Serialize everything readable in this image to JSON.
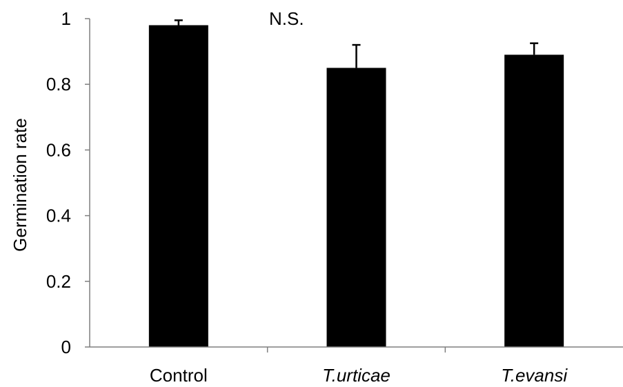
{
  "chart_data": {
    "type": "bar",
    "categories": [
      "Control",
      "T.urticae",
      "T.evansi"
    ],
    "category_italic": [
      false,
      true,
      true
    ],
    "values": [
      0.98,
      0.85,
      0.89
    ],
    "error_plus": [
      0.015,
      0.07,
      0.035
    ],
    "title": "",
    "xlabel": "",
    "ylabel": "Germination rate",
    "ylim": [
      0,
      1
    ],
    "yticks": [
      "0",
      "0.2",
      "0.4",
      "0.6",
      "0.8",
      "1"
    ],
    "annotation": "N.S.",
    "bar_color": "#000000",
    "axis_color": "#7f7f7f",
    "grid": false,
    "legend": "none"
  }
}
